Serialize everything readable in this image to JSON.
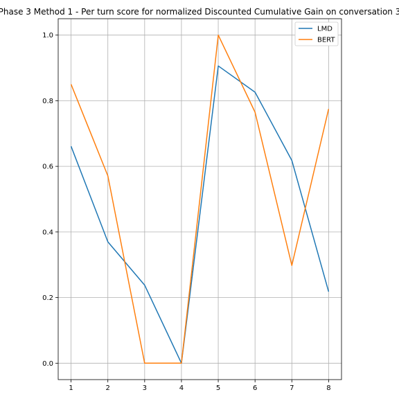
{
  "chart_data": {
    "type": "line",
    "title": "Phase 3 Method 1 - Per turn score for normalized Discounted Cumulative Gain on conversation 3",
    "x": [
      1,
      2,
      3,
      4,
      5,
      6,
      7,
      8
    ],
    "x_ticks": [
      "1",
      "2",
      "3",
      "4",
      "5",
      "6",
      "7",
      "8"
    ],
    "y_ticks": [
      "0.0",
      "0.2",
      "0.4",
      "0.6",
      "0.8",
      "1.0"
    ],
    "xlim": [
      0.65,
      8.35
    ],
    "ylim": [
      -0.05,
      1.05
    ],
    "grid": true,
    "legend_position": "top-right",
    "series": [
      {
        "name": "LMD",
        "color": "#1f77b4",
        "values": [
          0.661,
          0.37,
          0.238,
          0.0,
          0.906,
          0.826,
          0.618,
          0.218
        ]
      },
      {
        "name": "BERT",
        "color": "#ff7f0e",
        "values": [
          0.85,
          0.571,
          0.0,
          0.0,
          1.0,
          0.765,
          0.298,
          0.775
        ]
      }
    ]
  }
}
